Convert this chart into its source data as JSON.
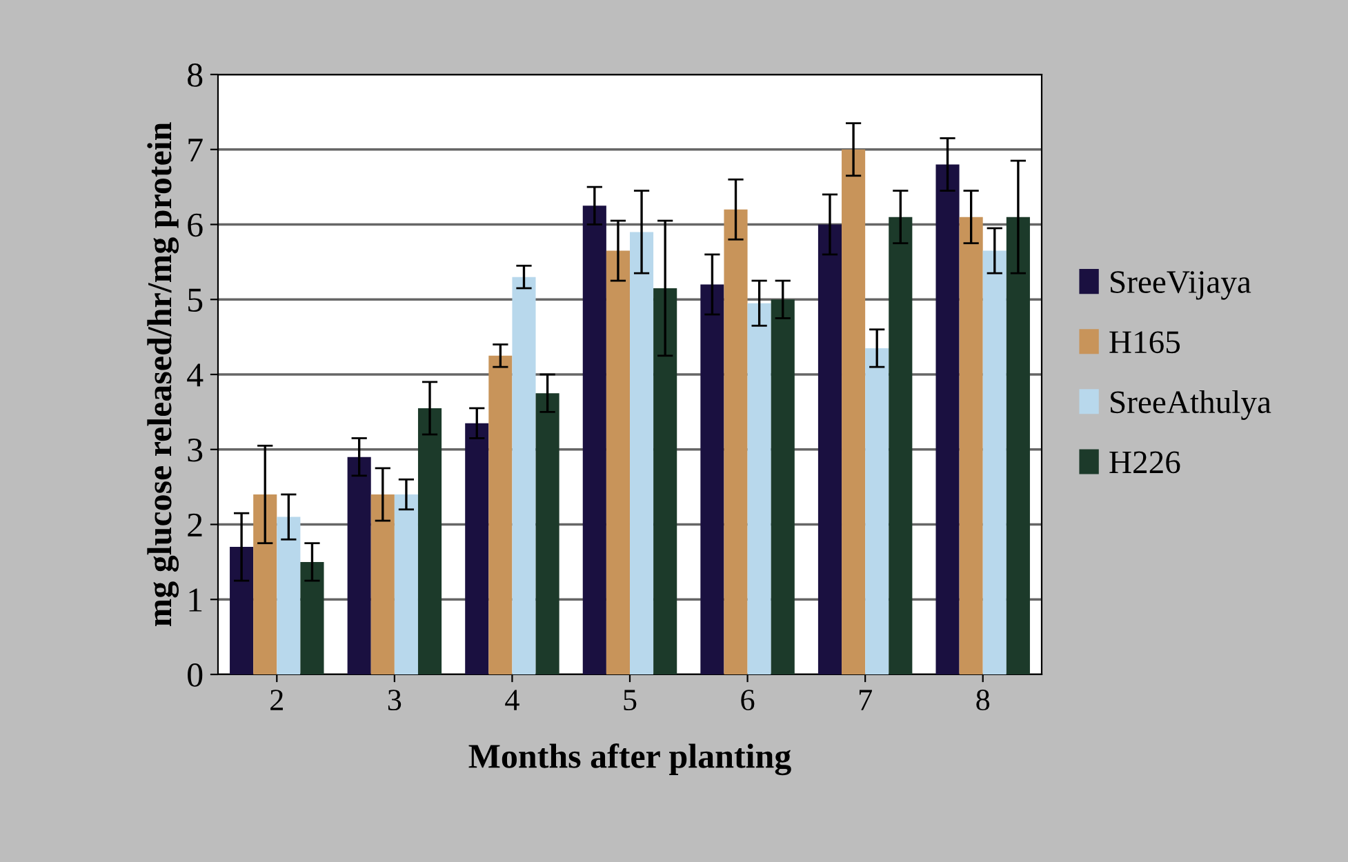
{
  "chart_data": {
    "type": "bar",
    "xlabel": "Months after planting",
    "ylabel": "mg glucose released/hr/mg protein",
    "categories": [
      "2",
      "3",
      "4",
      "5",
      "6",
      "7",
      "8"
    ],
    "ylim": [
      0,
      8
    ],
    "yticks": [
      0,
      1,
      2,
      3,
      4,
      5,
      6,
      7,
      8
    ],
    "grid": "y",
    "legend": "right",
    "series": [
      {
        "name": "SreeVijaya",
        "color": "#1a1040",
        "values": [
          1.7,
          2.9,
          3.35,
          6.25,
          5.2,
          6.0,
          6.8
        ],
        "errors": [
          0.45,
          0.25,
          0.2,
          0.25,
          0.4,
          0.4,
          0.35
        ]
      },
      {
        "name": "H165",
        "color": "#c8945a",
        "values": [
          2.4,
          2.4,
          4.25,
          5.65,
          6.2,
          7.0,
          6.1
        ],
        "errors": [
          0.65,
          0.35,
          0.15,
          0.4,
          0.4,
          0.35,
          0.35
        ]
      },
      {
        "name": "SreeAthulya",
        "color": "#b8d8ec",
        "values": [
          2.1,
          2.4,
          5.3,
          5.9,
          4.95,
          4.35,
          5.65
        ],
        "errors": [
          0.3,
          0.2,
          0.15,
          0.55,
          0.3,
          0.25,
          0.3
        ]
      },
      {
        "name": "H226",
        "color": "#1c3a2a",
        "values": [
          1.5,
          3.55,
          3.75,
          5.15,
          5.0,
          6.1,
          6.1
        ],
        "errors": [
          0.25,
          0.35,
          0.25,
          0.9,
          0.25,
          0.35,
          0.75
        ]
      }
    ]
  }
}
